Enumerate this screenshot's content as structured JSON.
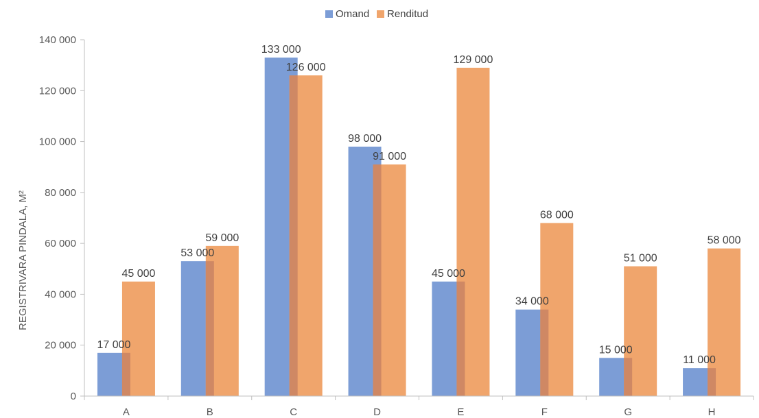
{
  "chart_data": {
    "type": "bar",
    "categories": [
      "A",
      "B",
      "C",
      "D",
      "E",
      "F",
      "G",
      "H"
    ],
    "series": [
      {
        "name": "Omand",
        "color": "#7c9dd6",
        "values": [
          17000,
          53000,
          133000,
          98000,
          45000,
          34000,
          15000,
          11000
        ],
        "labels": [
          "17 000",
          "53 000",
          "133 000",
          "98 000",
          "45 000",
          "34 000",
          "15 000",
          "11 000"
        ]
      },
      {
        "name": "Renditud",
        "color": "#f0a56c",
        "values": [
          45000,
          59000,
          126000,
          91000,
          129000,
          68000,
          51000,
          58000
        ],
        "labels": [
          "45 000",
          "59 000",
          "126 000",
          "91 000",
          "129 000",
          "68 000",
          "51 000",
          "58 000"
        ]
      }
    ],
    "overlap_color": "#cf8864",
    "ylabel": "REGISTRIVARA PINDALA, M²",
    "ylim": [
      0,
      140000
    ],
    "yticks": [
      0,
      20000,
      40000,
      60000,
      80000,
      100000,
      120000,
      140000
    ],
    "ytick_labels": [
      "0",
      "20 000",
      "40 000",
      "60 000",
      "80 000",
      "100 000",
      "120 000",
      "140 000"
    ],
    "legend_position": "top-center",
    "grid": false
  }
}
